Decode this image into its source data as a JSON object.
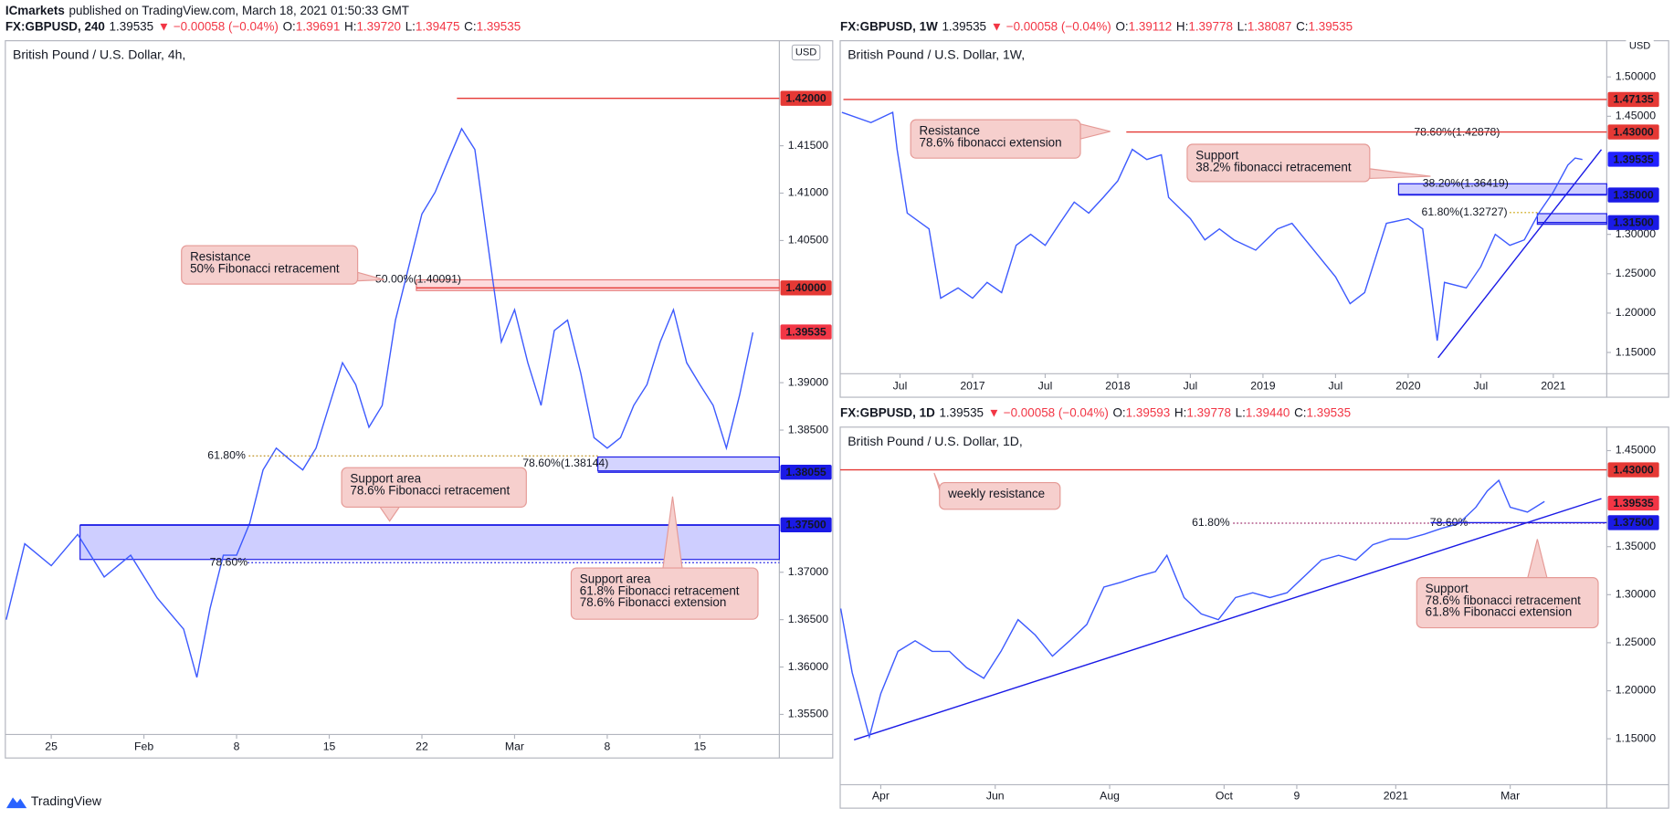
{
  "header": {
    "author": "ICmarkets",
    "text": "published on TradingView.com, March 18, 2021 01:50:33 GMT"
  },
  "footer": {
    "brand": "TradingView"
  },
  "chart_data": [
    {
      "type": "line",
      "symbol": "FX:GBPUSD, 240",
      "last": "1.39535",
      "change": "▼ −0.00058 (−0.04%)",
      "ohlc": [
        {
          "label": "O:",
          "value": "1.39691"
        },
        {
          "label": "H:",
          "value": "1.39720"
        },
        {
          "label": "L:",
          "value": "1.39475"
        },
        {
          "label": "C:",
          "value": "1.39535"
        }
      ],
      "title": "British Pound / U.S. Dollar, 4h,",
      "currency": "USD",
      "x": [
        -3.4,
        -2,
        0,
        2,
        4,
        6,
        8,
        10,
        11,
        12,
        13,
        14,
        15,
        16,
        17,
        18,
        19,
        20,
        21,
        22,
        23,
        24,
        25,
        26,
        27,
        28,
        29,
        30,
        31,
        32,
        33,
        34,
        35,
        36,
        37,
        38,
        39,
        40,
        41,
        42,
        43,
        44,
        45,
        46,
        47,
        48,
        49,
        50,
        51,
        52,
        53
      ],
      "series": [
        {
          "color": "#3d5afe",
          "values": [
            1.365,
            1.373,
            1.3707,
            1.374,
            1.3695,
            1.3718,
            1.3673,
            1.364,
            1.3589,
            1.3662,
            1.3718,
            1.3718,
            1.3752,
            1.3808,
            1.3831,
            1.3819,
            1.3808,
            1.3831,
            1.3876,
            1.3921,
            1.3898,
            1.3853,
            1.3876,
            1.3966,
            1.4022,
            1.4078,
            1.4101,
            1.4135,
            1.4168,
            1.4146,
            1.4044,
            1.3943,
            1.3977,
            1.3921,
            1.3876,
            1.3955,
            1.3966,
            1.391,
            1.3842,
            1.3831,
            1.3842,
            1.3876,
            1.3898,
            1.3943,
            1.3977,
            1.3921,
            1.3898,
            1.3876,
            1.3831,
            1.3887,
            1.3953
          ]
        }
      ],
      "xlim": [
        -3.468,
        55
      ],
      "xticks": [
        {
          "value": 0,
          "label": "25"
        },
        {
          "value": 7,
          "label": "Feb"
        },
        {
          "value": 14,
          "label": "8"
        },
        {
          "value": 21,
          "label": "15"
        },
        {
          "value": 28,
          "label": "22"
        },
        {
          "value": 35,
          "label": "Mar"
        },
        {
          "value": 42,
          "label": "8"
        },
        {
          "value": 49,
          "label": "15"
        }
      ],
      "ylim": [
        1.35288,
        1.42608
      ],
      "yticks": [
        {
          "value": 1.355,
          "label": "1.35500"
        },
        {
          "value": 1.36,
          "label": "1.36000"
        },
        {
          "value": 1.365,
          "label": "1.36500"
        },
        {
          "value": 1.37,
          "label": "1.37000"
        },
        {
          "value": 1.385,
          "label": "1.38500"
        },
        {
          "value": 1.39,
          "label": "1.39000"
        },
        {
          "value": 1.405,
          "label": "1.40500"
        },
        {
          "value": 1.41,
          "label": "1.41000"
        },
        {
          "value": 1.415,
          "label": "1.41500"
        }
      ],
      "levels": [
        {
          "value": 1.42,
          "label": "1.42000",
          "color": "#e53935"
        },
        {
          "value": 1.4,
          "label": "1.40000",
          "color": "#e53935"
        },
        {
          "value": 1.39535,
          "label": "1.39535",
          "color": "#f23645"
        },
        {
          "value": 1.38055,
          "label": "1.38055",
          "color": "#1a1ae6"
        },
        {
          "value": 1.375,
          "label": "1.37500",
          "color": "#1a1ae6"
        }
      ],
      "fibs": [
        {
          "text": "50.00%(1.40091)",
          "color": "#2962ff"
        },
        {
          "text": "61.80%",
          "color": "#b8860b"
        },
        {
          "text": "78.60%(1.38144)",
          "color": "#2196f3"
        },
        {
          "text": "78.60%",
          "color": "#1a1ae6"
        }
      ],
      "notes": [
        {
          "lines": [
            "Resistance",
            "50% Fibonacci retracement"
          ]
        },
        {
          "lines": [
            "Support area",
            "78.6% Fibonacci retracement"
          ]
        },
        {
          "lines": [
            "Support area",
            "61.8% Fibonacci retracement",
            "78.6% Fibonacci extension"
          ]
        }
      ]
    },
    {
      "type": "line",
      "symbol": "FX:GBPUSD, 1W",
      "last": "1.39535",
      "change": "▼ −0.00058 (−0.04%)",
      "ohlc": [
        {
          "label": "O:",
          "value": "1.39112"
        },
        {
          "label": "H:",
          "value": "1.39778"
        },
        {
          "label": "L:",
          "value": "1.38087"
        },
        {
          "label": "C:",
          "value": "1.39535"
        }
      ],
      "title": "British Pound / U.S. Dollar, 1W,",
      "currency": "USD",
      "x": [
        2016.1,
        2016.3,
        2016.45,
        2016.48,
        2016.55,
        2016.7,
        2016.78,
        2016.9,
        2017.0,
        2017.1,
        2017.2,
        2017.3,
        2017.4,
        2017.5,
        2017.6,
        2017.7,
        2017.8,
        2017.9,
        2018.0,
        2018.1,
        2018.2,
        2018.3,
        2018.35,
        2018.5,
        2018.6,
        2018.7,
        2018.8,
        2018.95,
        2019.1,
        2019.2,
        2019.35,
        2019.5,
        2019.6,
        2019.7,
        2019.85,
        2020.0,
        2020.1,
        2020.2,
        2020.25,
        2020.4,
        2020.5,
        2020.6,
        2020.7,
        2020.8,
        2020.9,
        2021.0,
        2021.1,
        2021.15,
        2021.2
      ],
      "series": [
        {
          "color": "#3d5afe",
          "values": [
            1.455,
            1.442,
            1.455,
            1.408,
            1.327,
            1.307,
            1.219,
            1.232,
            1.219,
            1.239,
            1.226,
            1.286,
            1.3,
            1.286,
            1.314,
            1.341,
            1.327,
            1.347,
            1.368,
            1.408,
            1.395,
            1.401,
            1.347,
            1.32,
            1.293,
            1.307,
            1.293,
            1.28,
            1.307,
            1.314,
            1.28,
            1.246,
            1.212,
            1.226,
            1.314,
            1.32,
            1.307,
            1.165,
            1.239,
            1.232,
            1.259,
            1.3,
            1.286,
            1.293,
            1.327,
            1.354,
            1.388,
            1.397,
            1.395
          ]
        }
      ],
      "xlim": [
        2016.088,
        2021.368
      ],
      "xticks": [
        {
          "value": 2016.5,
          "label": "Jul"
        },
        2017,
        {
          "value": 2017.5,
          "label": "Jul"
        },
        2018,
        {
          "value": 2018.5,
          "label": "Jul"
        },
        2019,
        {
          "value": 2019.5,
          "label": "Jul"
        },
        2020,
        {
          "value": 2020.5,
          "label": "Jul"
        },
        2021
      ],
      "ylim": [
        1.12297,
        1.54595
      ],
      "yticks": [
        {
          "value": 1.15,
          "label": "1.15000"
        },
        {
          "value": 1.2,
          "label": "1.20000"
        },
        {
          "value": 1.25,
          "label": "1.25000"
        },
        {
          "value": 1.3,
          "label": "1.30000"
        },
        {
          "value": 1.45,
          "label": "1.45000"
        },
        {
          "value": 1.5,
          "label": "1.50000"
        }
      ],
      "levels": [
        {
          "value": 1.47135,
          "label": "1.47135",
          "color": "#e53935"
        },
        {
          "value": 1.43,
          "label": "1.43000",
          "color": "#e53935"
        },
        {
          "value": 1.39535,
          "label": "1.39535",
          "color": "#2121ff"
        },
        {
          "value": 1.35,
          "label": "1.35000",
          "color": "#1a1ae6"
        },
        {
          "value": 1.315,
          "label": "1.31500",
          "color": "#1a1ae6"
        }
      ],
      "fibs": [
        {
          "text": "78.60%(1.42878)",
          "color": "#2196f3"
        },
        {
          "text": "38.20%(1.36419)",
          "color": "#2962ff"
        },
        {
          "text": "61.80%(1.32727)",
          "color": "#c9a000"
        }
      ],
      "notes": [
        {
          "lines": [
            "Resistance",
            "78.6% fibonacci extension"
          ]
        },
        {
          "lines": [
            "Support",
            "38.2% fibonacci retracement"
          ]
        }
      ]
    },
    {
      "type": "line",
      "symbol": "FX:GBPUSD, 1D",
      "last": "1.39535",
      "change": "▼ −0.00058 (−0.04%)",
      "ohlc": [
        {
          "label": "O:",
          "value": "1.39593"
        },
        {
          "label": "H:",
          "value": "1.39778"
        },
        {
          "label": "L:",
          "value": "1.39440"
        },
        {
          "label": "C:",
          "value": "1.39535"
        }
      ],
      "title": "British Pound / U.S. Dollar, 1D,",
      "x": [
        2.3,
        2.5,
        2.8,
        3.0,
        3.3,
        3.6,
        3.9,
        4.2,
        4.5,
        4.8,
        5.1,
        5.4,
        5.7,
        6.0,
        6.3,
        6.6,
        6.9,
        7.2,
        7.5,
        7.8,
        8.0,
        8.3,
        8.6,
        8.9,
        9.2,
        9.5,
        9.8,
        10.1,
        10.4,
        10.7,
        11.0,
        11.3,
        11.6,
        11.9,
        12.2,
        12.5,
        12.8,
        13.1,
        13.4,
        13.6,
        13.8,
        14.0,
        14.3,
        14.6
      ],
      "series": [
        {
          "color": "#3d5afe",
          "values": [
            1.2856,
            1.219,
            1.152,
            1.197,
            1.241,
            1.252,
            1.241,
            1.241,
            1.224,
            1.213,
            1.241,
            1.274,
            1.258,
            1.236,
            1.252,
            1.269,
            1.308,
            1.313,
            1.319,
            1.324,
            1.341,
            1.297,
            1.28,
            1.274,
            1.297,
            1.302,
            1.297,
            1.302,
            1.319,
            1.336,
            1.341,
            1.336,
            1.352,
            1.358,
            1.358,
            1.363,
            1.369,
            1.374,
            1.391,
            1.408,
            1.419,
            1.391,
            1.386,
            1.397
          ]
        }
      ],
      "xlim": [
        2.291,
        15.687
      ],
      "xticks": [
        {
          "value": 3,
          "label": "Apr"
        },
        {
          "value": 5,
          "label": "Jun"
        },
        {
          "value": 7,
          "label": "Aug"
        },
        {
          "value": 9,
          "label": "Oct"
        },
        {
          "value": 10.27,
          "label": "9"
        },
        {
          "value": 12,
          "label": "2021"
        },
        {
          "value": 14,
          "label": "Mar"
        }
      ],
      "ylim": [
        1.10222,
        1.47444
      ],
      "yticks": [
        {
          "value": 1.15,
          "label": "1.15000"
        },
        {
          "value": 1.2,
          "label": "1.20000"
        },
        {
          "value": 1.25,
          "label": "1.25000"
        },
        {
          "value": 1.3,
          "label": "1.30000"
        },
        {
          "value": 1.35,
          "label": "1.35000"
        },
        {
          "value": 1.45,
          "label": "1.45000"
        }
      ],
      "levels": [
        {
          "value": 1.43,
          "label": "1.43000",
          "color": "#e53935"
        },
        {
          "value": 1.39535,
          "label": "1.39535",
          "color": "#f23645"
        },
        {
          "value": 1.375,
          "label": "1.37500",
          "color": "#1a1ae6"
        }
      ],
      "fibs": [
        {
          "text": "61.80%",
          "color": "#a0306e"
        },
        {
          "text": "78.60%",
          "color": "#2962ff"
        }
      ],
      "notes": [
        {
          "lines": [
            "weekly resistance"
          ]
        },
        {
          "lines": [
            "Support",
            "78.6% fibonacci retracement",
            "61.8% Fibonacci extension"
          ]
        }
      ]
    }
  ]
}
